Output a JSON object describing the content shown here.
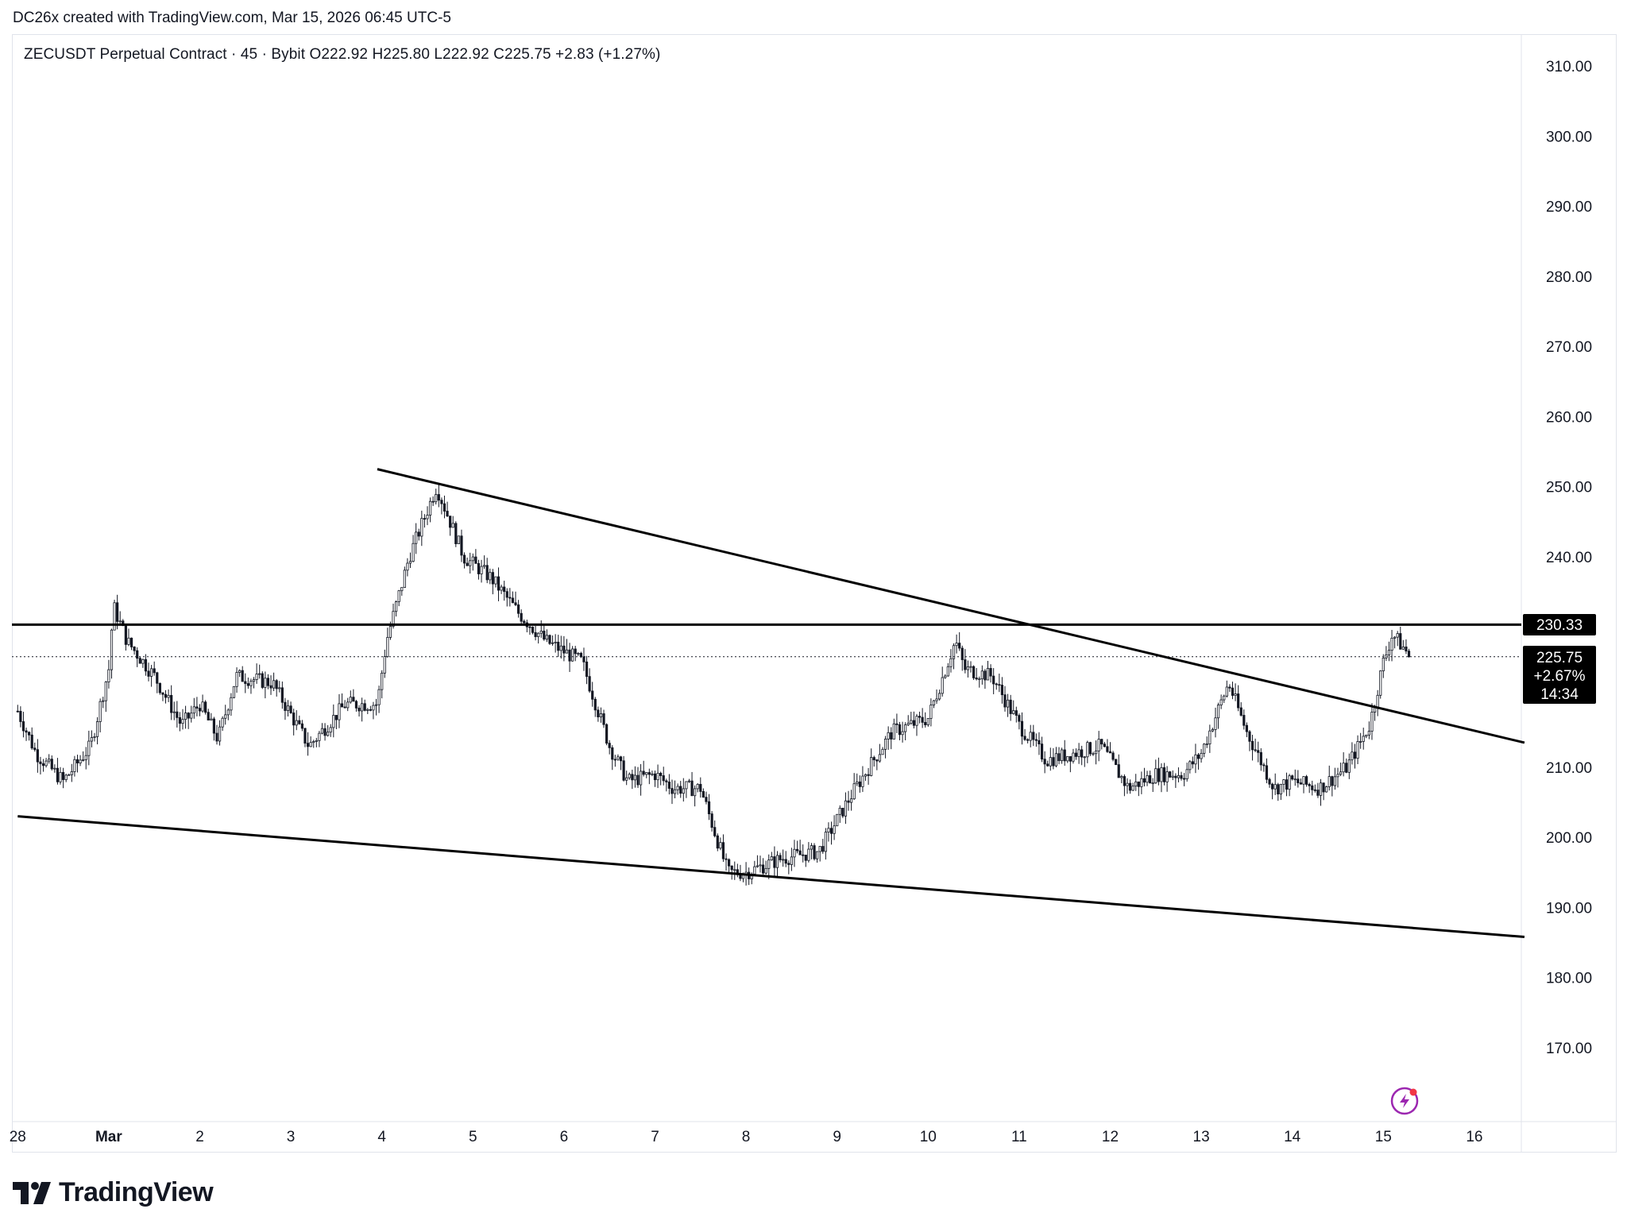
{
  "header": {
    "attribution": "DC26x created with TradingView.com, Mar 15, 2026 06:45 UTC-5"
  },
  "legend": {
    "text": "ZECUSDT Perpetual Contract · 45 · Bybit  O222.92  H225.80  L222.92  C225.75  +2.83 (+1.27%)"
  },
  "brand": {
    "logo_text": "TradingView",
    "logo_icon": "tradingview-logo-icon"
  },
  "price_tags": {
    "resistance_label": "230.33",
    "last_price": "225.75",
    "last_change": "+2.67%",
    "countdown": "14:34"
  },
  "chart_data": {
    "type": "candlestick",
    "title": "",
    "symbol": "ZECUSDT Perpetual Contract",
    "interval": "45",
    "exchange": "Bybit",
    "ohlc": {
      "open": 222.92,
      "high": 225.8,
      "low": 222.92,
      "close": 225.75,
      "change": 2.83,
      "change_pct": 1.27
    },
    "y_axis": {
      "ticks": [
        310,
        300,
        290,
        280,
        270,
        260,
        250,
        240,
        210,
        200,
        190,
        180,
        170
      ],
      "tick_labels": [
        "310.00",
        "300.00",
        "290.00",
        "280.00",
        "270.00",
        "260.00",
        "250.00",
        "240.00",
        "210.00",
        "200.00",
        "190.00",
        "180.00",
        "170.00"
      ],
      "range": [
        163,
        317
      ]
    },
    "x_axis": {
      "tick_labels": [
        "28",
        "Mar",
        "2",
        "3",
        "4",
        "5",
        "6",
        "7",
        "8",
        "9",
        "10",
        "11",
        "12",
        "13",
        "14",
        "15",
        "16"
      ],
      "tick_days": [
        0,
        1,
        2,
        3,
        4,
        5,
        6,
        7,
        8,
        9,
        10,
        11,
        12,
        13,
        14,
        15,
        16
      ],
      "range_days": [
        0,
        16.5
      ]
    },
    "price_path": [
      [
        0.0,
        218
      ],
      [
        0.2,
        212
      ],
      [
        0.5,
        208
      ],
      [
        0.8,
        213
      ],
      [
        1.0,
        224
      ],
      [
        1.05,
        233
      ],
      [
        1.2,
        228
      ],
      [
        1.5,
        223
      ],
      [
        1.8,
        216
      ],
      [
        2.0,
        219
      ],
      [
        2.2,
        214
      ],
      [
        2.4,
        223
      ],
      [
        2.8,
        222
      ],
      [
        3.2,
        213
      ],
      [
        3.6,
        219
      ],
      [
        3.95,
        219
      ],
      [
        4.05,
        228
      ],
      [
        4.3,
        240
      ],
      [
        4.6,
        250
      ],
      [
        4.9,
        240
      ],
      [
        5.2,
        237
      ],
      [
        5.5,
        232
      ],
      [
        5.8,
        228
      ],
      [
        6.2,
        225
      ],
      [
        6.5,
        213
      ],
      [
        6.7,
        208
      ],
      [
        7.0,
        209
      ],
      [
        7.2,
        207
      ],
      [
        7.5,
        207
      ],
      [
        7.8,
        195
      ],
      [
        8.0,
        195
      ],
      [
        8.4,
        197
      ],
      [
        8.8,
        198
      ],
      [
        9.2,
        207
      ],
      [
        9.6,
        215
      ],
      [
        10.0,
        217
      ],
      [
        10.3,
        228
      ],
      [
        10.4,
        224
      ],
      [
        10.7,
        223
      ],
      [
        11.0,
        216
      ],
      [
        11.3,
        211
      ],
      [
        11.6,
        212
      ],
      [
        11.9,
        213
      ],
      [
        12.2,
        207
      ],
      [
        12.5,
        209
      ],
      [
        12.8,
        209
      ],
      [
        13.0,
        212
      ],
      [
        13.3,
        222
      ],
      [
        13.5,
        215
      ],
      [
        13.8,
        207
      ],
      [
        14.0,
        208
      ],
      [
        14.3,
        207
      ],
      [
        14.6,
        210
      ],
      [
        14.85,
        216
      ],
      [
        15.0,
        225
      ],
      [
        15.1,
        229
      ],
      [
        15.3,
        225.75
      ]
    ],
    "lines": [
      {
        "kind": "horizontal",
        "name": "resistance",
        "price": 230.33
      },
      {
        "kind": "horizontal-dotted",
        "name": "last-price",
        "price": 225.75
      },
      {
        "kind": "trendline",
        "name": "descending-resistance",
        "from": [
          3.95,
          252.5
        ],
        "to": [
          16.55,
          213.5
        ]
      },
      {
        "kind": "trendline",
        "name": "descending-support",
        "from": [
          0.0,
          203.0
        ],
        "to": [
          16.55,
          185.8
        ]
      }
    ],
    "grid": false,
    "legend_position": "top-left"
  }
}
